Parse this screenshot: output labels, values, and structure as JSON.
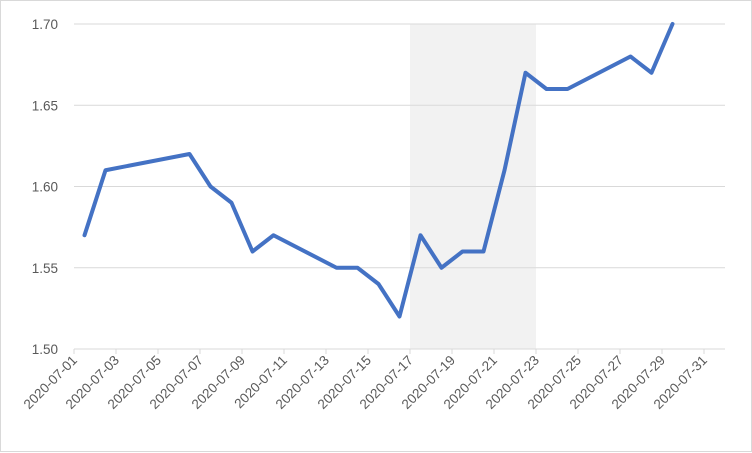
{
  "chart_data": {
    "type": "line",
    "title": "",
    "xlabel": "",
    "ylabel": "",
    "x_axis_type": "date",
    "xlim": [
      "2020-07-01",
      "2020-08-01"
    ],
    "ylim": [
      1.5,
      1.7
    ],
    "grid": "horizontal",
    "legend": "none",
    "x_tick_labels": [
      "2020-07-01",
      "2020-07-03",
      "2020-07-05",
      "2020-07-07",
      "2020-07-09",
      "2020-07-11",
      "2020-07-13",
      "2020-07-15",
      "2020-07-17",
      "2020-07-19",
      "2020-07-21",
      "2020-07-23",
      "2020-07-25",
      "2020-07-27",
      "2020-07-29",
      "2020-07-31"
    ],
    "y_tick_labels": [
      "1.50",
      "1.55",
      "1.60",
      "1.65",
      "1.70"
    ],
    "shaded_region": {
      "from": "2020-07-17",
      "to": "2020-07-22",
      "color": "#f2f2f2"
    },
    "series": [
      {
        "color": "#4472c4",
        "x": [
          "2020-07-01",
          "2020-07-02",
          "2020-07-06",
          "2020-07-07",
          "2020-07-08",
          "2020-07-09",
          "2020-07-10",
          "2020-07-13",
          "2020-07-14",
          "2020-07-15",
          "2020-07-16",
          "2020-07-17",
          "2020-07-18",
          "2020-07-19",
          "2020-07-20",
          "2020-07-21",
          "2020-07-22",
          "2020-07-23",
          "2020-07-24",
          "2020-07-27",
          "2020-07-28",
          "2020-07-29"
        ],
        "values": [
          1.57,
          1.61,
          1.62,
          1.6,
          1.59,
          1.56,
          1.57,
          1.55,
          1.55,
          1.54,
          1.52,
          1.57,
          1.55,
          1.56,
          1.56,
          1.61,
          1.67,
          1.66,
          1.66,
          1.68,
          1.67,
          1.7
        ]
      }
    ]
  }
}
